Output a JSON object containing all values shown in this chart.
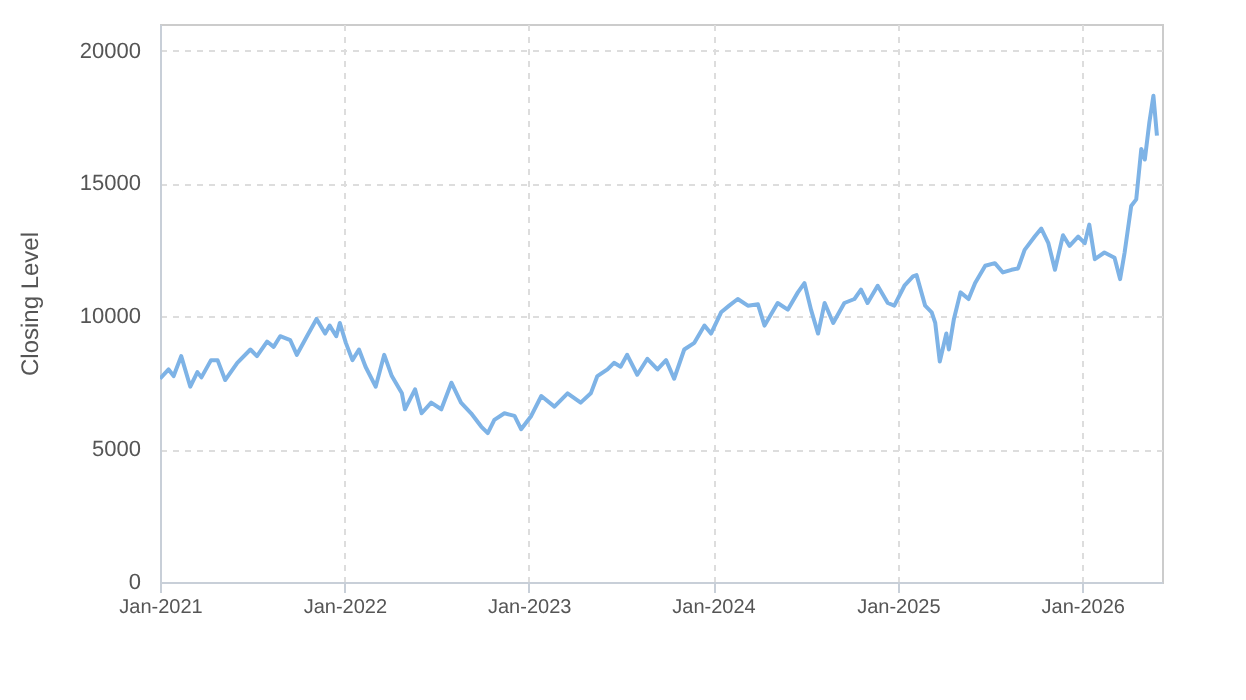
{
  "chart_data": {
    "type": "line",
    "ylabel": "Closing Level",
    "x": [
      "2021-01-01",
      "2021-01-18",
      "2021-01-28",
      "2021-02-12",
      "2021-03-02",
      "2021-03-16",
      "2021-03-24",
      "2021-04-12",
      "2021-04-25",
      "2021-05-10",
      "2021-06-03",
      "2021-06-29",
      "2021-07-12",
      "2021-08-01",
      "2021-08-14",
      "2021-08-27",
      "2021-09-16",
      "2021-09-29",
      "2021-10-19",
      "2021-11-07",
      "2021-11-24",
      "2021-12-03",
      "2021-12-16",
      "2021-12-23",
      "2022-01-04",
      "2022-01-17",
      "2022-01-30",
      "2022-02-12",
      "2022-03-04",
      "2022-03-21",
      "2022-04-05",
      "2022-04-25",
      "2022-05-01",
      "2022-05-21",
      "2022-06-03",
      "2022-06-22",
      "2022-07-12",
      "2022-08-01",
      "2022-08-20",
      "2022-09-09",
      "2022-09-29",
      "2022-10-12",
      "2022-10-25",
      "2022-11-14",
      "2022-12-04",
      "2022-12-17",
      "2023-01-06",
      "2023-01-26",
      "2023-02-21",
      "2023-03-19",
      "2023-04-14",
      "2023-05-04",
      "2023-05-17",
      "2023-06-06",
      "2023-06-19",
      "2023-07-02",
      "2023-07-15",
      "2023-08-04",
      "2023-08-24",
      "2023-09-13",
      "2023-09-30",
      "2023-10-16",
      "2023-11-05",
      "2023-11-25",
      "2023-12-15",
      "2023-12-28",
      "2024-01-17",
      "2024-02-02",
      "2024-02-19",
      "2024-03-10",
      "2024-03-30",
      "2024-04-12",
      "2024-05-08",
      "2024-05-28",
      "2024-06-17",
      "2024-06-30",
      "2024-07-13",
      "2024-07-27",
      "2024-08-09",
      "2024-08-26",
      "2024-09-17",
      "2024-10-07",
      "2024-10-20",
      "2024-11-02",
      "2024-11-22",
      "2024-12-12",
      "2024-12-25",
      "2025-01-14",
      "2025-01-31",
      "2025-02-07",
      "2025-02-24",
      "2025-03-09",
      "2025-03-16",
      "2025-03-25",
      "2025-04-07",
      "2025-04-12",
      "2025-04-22",
      "2025-05-05",
      "2025-05-21",
      "2025-06-03",
      "2025-06-23",
      "2025-07-12",
      "2025-07-28",
      "2025-08-14",
      "2025-08-27",
      "2025-09-09",
      "2025-09-29",
      "2025-10-12",
      "2025-10-26",
      "2025-11-08",
      "2025-11-24",
      "2025-12-07",
      "2025-12-24",
      "2026-01-06",
      "2026-01-15",
      "2026-01-26",
      "2026-02-14",
      "2026-03-06",
      "2026-03-17",
      "2026-03-26",
      "2026-04-08",
      "2026-04-18",
      "2026-04-28",
      "2026-05-05",
      "2026-05-14",
      "2026-05-22",
      "2026-05-29"
    ],
    "series": [
      {
        "color": "#7eb3e6",
        "values": [
          7650,
          8000,
          7750,
          8500,
          7350,
          7900,
          7700,
          8350,
          8350,
          7600,
          8250,
          8750,
          8500,
          9050,
          8850,
          9250,
          9100,
          8550,
          9250,
          9900,
          9350,
          9650,
          9250,
          9750,
          9000,
          8350,
          8750,
          8100,
          7350,
          8550,
          7750,
          7100,
          6500,
          7250,
          6350,
          6750,
          6500,
          7500,
          6750,
          6350,
          5850,
          5600,
          6100,
          6350,
          6250,
          5750,
          6250,
          7000,
          6600,
          7100,
          6750,
          7100,
          7750,
          8000,
          8250,
          8100,
          8550,
          7800,
          8400,
          8000,
          8350,
          7650,
          8750,
          9000,
          9650,
          9350,
          10150,
          10400,
          10650,
          10400,
          10450,
          9650,
          10500,
          10250,
          10900,
          11250,
          10250,
          9350,
          10500,
          9750,
          10500,
          10650,
          11000,
          10500,
          11150,
          10500,
          10400,
          11150,
          11500,
          11550,
          10400,
          10150,
          9750,
          8300,
          9350,
          8750,
          9900,
          10900,
          10650,
          11250,
          11900,
          12000,
          11650,
          11750,
          11800,
          12500,
          13000,
          13300,
          12750,
          11750,
          13050,
          12650,
          13000,
          12750,
          13450,
          12150,
          12400,
          12200,
          11400,
          12400,
          14150,
          14400,
          16300,
          15900,
          17300,
          18300,
          16800
        ]
      }
    ],
    "xlim": [
      "2021-01-01",
      "2026-06-08"
    ],
    "xticks": [
      {
        "value": "2021-01-01",
        "label": "Jan-2021"
      },
      {
        "value": "2022-01-01",
        "label": "Jan-2022"
      },
      {
        "value": "2023-01-01",
        "label": "Jan-2023"
      },
      {
        "value": "2024-01-01",
        "label": "Jan-2024"
      },
      {
        "value": "2025-01-01",
        "label": "Jan-2025"
      },
      {
        "value": "2026-01-01",
        "label": "Jan-2026"
      }
    ],
    "ylim": [
      0,
      21000
    ],
    "yticks": [
      0,
      5000,
      10000,
      15000,
      20000
    ],
    "grid": true,
    "line_style": "solid"
  }
}
